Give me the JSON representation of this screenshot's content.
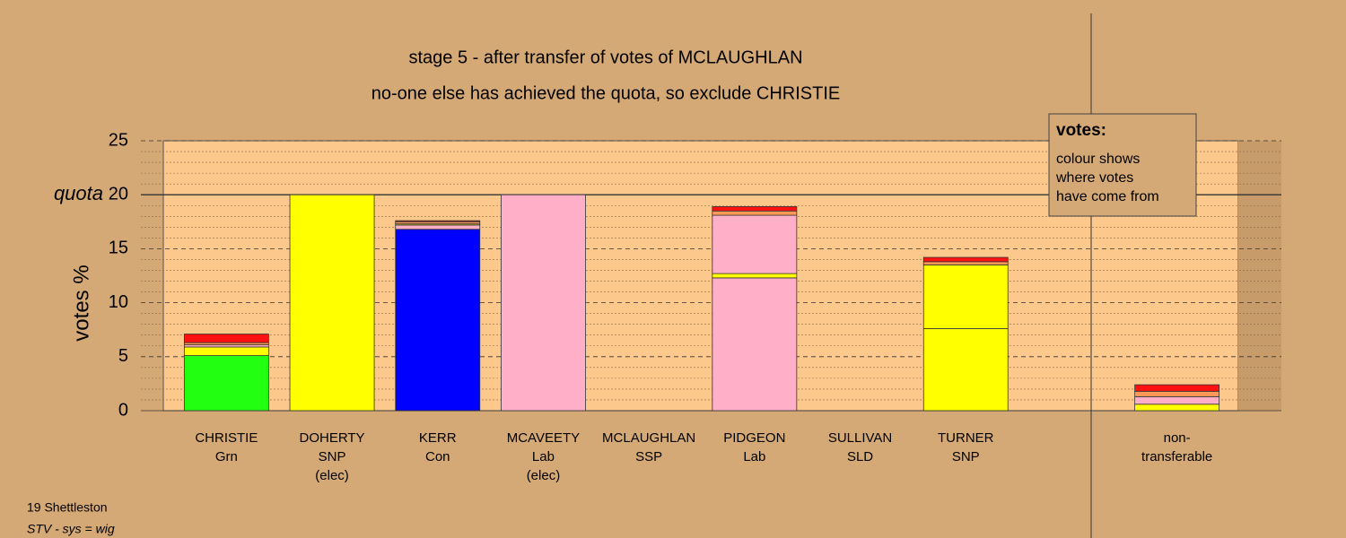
{
  "chart_data": {
    "type": "stacked-bar",
    "title": "stage 5 - after transfer of votes of MCLAUGHLAN",
    "subtitle": "no-one else has achieved the quota, so exclude CHRISTIE",
    "y_label": "votes %",
    "quota_label": "quota",
    "quota": 20,
    "ylim": [
      0,
      25
    ],
    "yticks": [
      0,
      5,
      10,
      15,
      20,
      25
    ],
    "minor_yticks": [
      1,
      2,
      3,
      4,
      6,
      7,
      8,
      9,
      11,
      12,
      13,
      14,
      16,
      17,
      18,
      19,
      21,
      22,
      23,
      24
    ],
    "categories": [
      [
        "CHRISTIE",
        "Grn"
      ],
      [
        "DOHERTY",
        "SNP",
        "(elec)"
      ],
      [
        "KERR",
        "Con"
      ],
      [
        "MCAVEETY",
        "Lab",
        "(elec)"
      ],
      [
        "MCLAUGHLAN",
        "SSP"
      ],
      [
        "PIDGEON",
        "Lab"
      ],
      [
        "SULLIVAN",
        "SLD"
      ],
      [
        "TURNER",
        "SNP"
      ],
      null,
      [
        "non-",
        "transferable"
      ]
    ],
    "bars": [
      {
        "segments": [
          {
            "value": 5.1,
            "color": "#22ff11"
          },
          {
            "value": 0.8,
            "color": "#ffff00"
          },
          {
            "value": 0.2,
            "color": "#ffb0c8"
          },
          {
            "value": 0.2,
            "color": "#ff9955"
          },
          {
            "value": 0.8,
            "color": "#ff1111"
          }
        ]
      },
      {
        "segments": [
          {
            "value": 20,
            "color": "#ffff00"
          }
        ]
      },
      {
        "segments": [
          {
            "value": 16.8,
            "color": "#0000ff"
          },
          {
            "value": 0.4,
            "color": "#ffb0c8"
          },
          {
            "value": 0.1,
            "color": "#ffff00"
          },
          {
            "value": 0.2,
            "color": "#ff9955"
          },
          {
            "value": 0.1,
            "color": "#cc2222"
          }
        ]
      },
      {
        "segments": [
          {
            "value": 20,
            "color": "#ffb0c8"
          }
        ]
      },
      {
        "segments": []
      },
      {
        "segments": [
          {
            "value": 12.3,
            "color": "#ffb0c8"
          },
          {
            "value": 0.4,
            "color": "#ffff00"
          },
          {
            "value": 5.4,
            "color": "#ffb0c8"
          },
          {
            "value": 0.4,
            "color": "#ff9955"
          },
          {
            "value": 0.4,
            "color": "#ff1111"
          }
        ]
      },
      {
        "segments": []
      },
      {
        "segments": [
          {
            "value": 7.6,
            "color": "#ffff00"
          },
          {
            "value": 5.9,
            "color": "#ffff00"
          },
          {
            "value": 0.3,
            "color": "#ff9955"
          },
          {
            "value": 0.4,
            "color": "#ff1111"
          }
        ]
      },
      {
        "segments": []
      },
      {
        "segments": [
          {
            "value": 0.6,
            "color": "#ffff00"
          },
          {
            "value": 0.7,
            "color": "#ffb0c8"
          },
          {
            "value": 0.5,
            "color": "#ff9955"
          },
          {
            "value": 0.6,
            "color": "#ff1111"
          }
        ]
      }
    ],
    "legend": {
      "title": "votes:",
      "lines": [
        "colour shows",
        "where votes",
        "have come from"
      ]
    },
    "footer": [
      "19 Shettleston",
      "STV - sys = wig"
    ]
  }
}
